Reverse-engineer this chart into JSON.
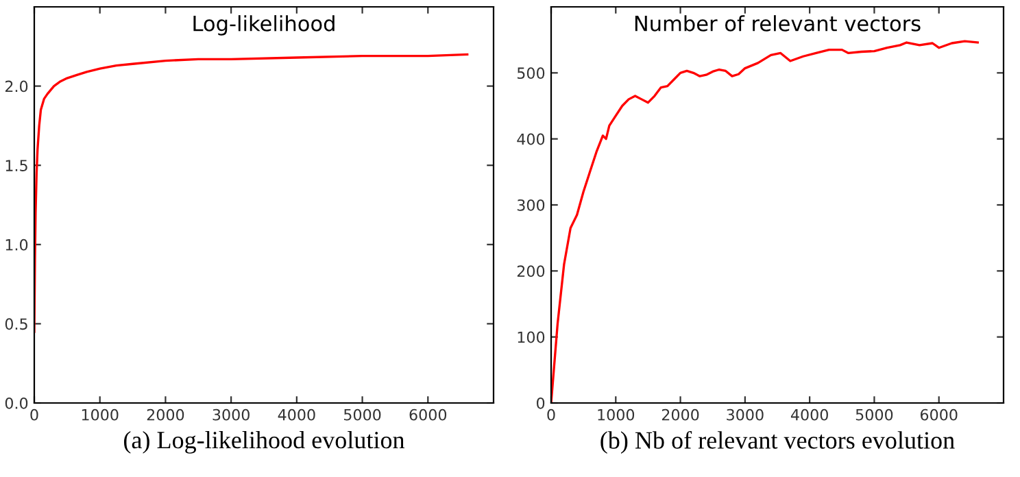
{
  "chart_data": [
    {
      "type": "line",
      "title": "Log-likelihood",
      "xlabel": "(a) Log-likelihood evolution",
      "xlim": [
        0,
        7000
      ],
      "xticks": [
        0,
        1000,
        2000,
        3000,
        4000,
        5000,
        6000
      ],
      "ylim": [
        0,
        2.5
      ],
      "yticks": [
        {
          "value": 0,
          "label": "0.0"
        },
        0.5,
        {
          "value": 1,
          "label": "1.0"
        },
        1.5,
        {
          "value": 2,
          "label": "2.0"
        }
      ],
      "grid": false,
      "series": [
        {
          "color": "#ff0000",
          "x": [
            0,
            10,
            20,
            35,
            50,
            75,
            100,
            150,
            200,
            300,
            400,
            500,
            650,
            800,
            1000,
            1250,
            1500,
            2000,
            2500,
            3000,
            4000,
            5000,
            6000,
            6600
          ],
          "values": [
            0.45,
            0.9,
            1.2,
            1.45,
            1.6,
            1.75,
            1.85,
            1.92,
            1.95,
            2.0,
            2.03,
            2.05,
            2.07,
            2.09,
            2.11,
            2.13,
            2.14,
            2.16,
            2.17,
            2.17,
            2.18,
            2.19,
            2.19,
            2.2
          ]
        }
      ]
    },
    {
      "type": "line",
      "title": "Number of relevant vectors",
      "xlabel": "(b) Nb of relevant vectors evolution",
      "xlim": [
        0,
        7000
      ],
      "xticks": [
        0,
        1000,
        2000,
        3000,
        4000,
        5000,
        6000
      ],
      "ylim": [
        0,
        600
      ],
      "yticks": [
        0,
        100,
        200,
        300,
        400,
        500
      ],
      "grid": false,
      "series": [
        {
          "color": "#ff0000",
          "x": [
            0,
            100,
            200,
            300,
            400,
            500,
            600,
            700,
            800,
            850,
            900,
            1000,
            1100,
            1200,
            1300,
            1400,
            1500,
            1600,
            1700,
            1800,
            1900,
            2000,
            2100,
            2200,
            2300,
            2400,
            2500,
            2600,
            2700,
            2800,
            2900,
            3000,
            3200,
            3400,
            3550,
            3700,
            3900,
            4100,
            4300,
            4500,
            4600,
            4800,
            5000,
            5200,
            5400,
            5500,
            5700,
            5900,
            6000,
            6200,
            6400,
            6600
          ],
          "values": [
            0,
            120,
            210,
            265,
            285,
            320,
            350,
            380,
            405,
            400,
            420,
            435,
            450,
            460,
            465,
            460,
            455,
            465,
            478,
            480,
            490,
            500,
            503,
            500,
            495,
            497,
            502,
            505,
            503,
            495,
            498,
            507,
            515,
            527,
            530,
            518,
            525,
            530,
            535,
            535,
            530,
            532,
            533,
            538,
            542,
            546,
            542,
            545,
            538,
            545,
            548,
            546
          ]
        }
      ]
    }
  ]
}
